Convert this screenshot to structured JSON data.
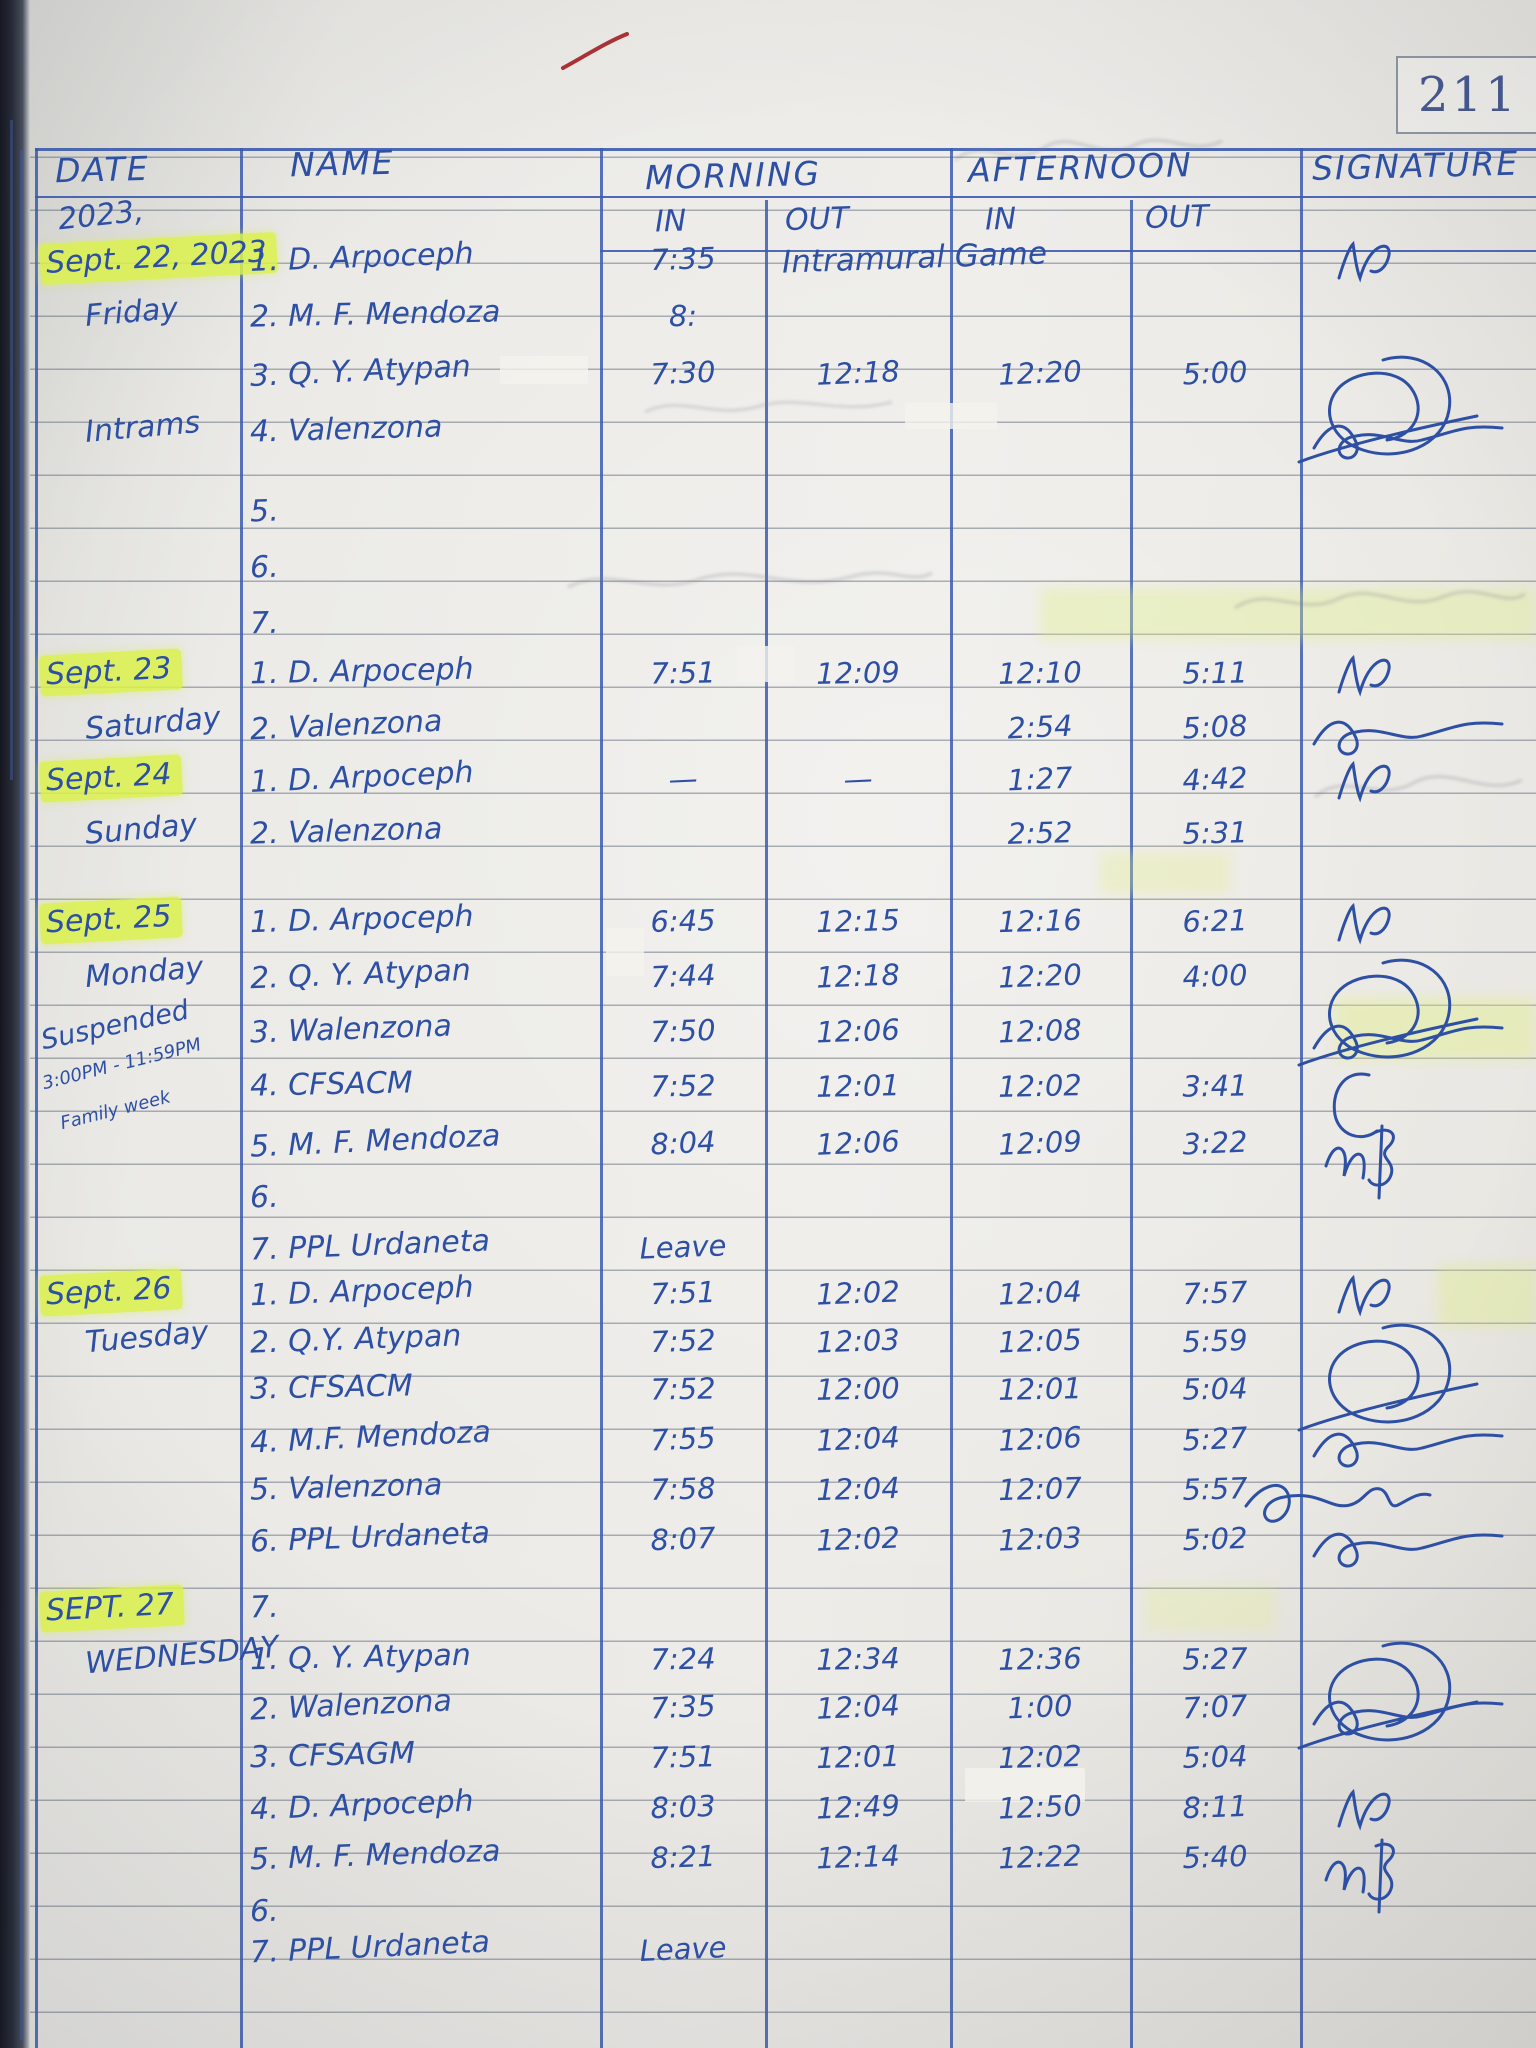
{
  "photo": {
    "page_number": "211"
  },
  "header": {
    "date": "DATE",
    "year": "2023,",
    "name": "NAME",
    "morning": "MORNING",
    "afternoon": "AFTERNOON",
    "signature": "SIGNATURE",
    "morning_in": "IN",
    "morning_out": "OUT",
    "afternoon_in": "IN",
    "afternoon_out": "OUT"
  },
  "colors": {
    "ink_blue": "#2d4fa4",
    "highlighter": "#dbf14a",
    "paper": "#e9e8e4"
  },
  "sections": [
    {
      "date_label": "Sept. 22, 2023",
      "rows": [
        {
          "date": "Sept. 22, 2023",
          "date_style": "date",
          "date_highlight": true,
          "name": "1. D. Arpoceph",
          "m_in": "7:35",
          "span_note": "Intramural Game",
          "sig": "check"
        },
        {
          "date": "Friday",
          "date_style": "day",
          "name": "2. M. F. Mendoza",
          "m_in": "8:"
        },
        {
          "name": "3. Q. Y. Atypan",
          "m_in": "7:30",
          "m_out": "12:18",
          "a_in": "12:20",
          "a_out": "5:00",
          "sig": "bigloop"
        },
        {
          "date": "Intrams",
          "date_style": "day",
          "name": "4. Valenzona",
          "sig": "scrawl"
        },
        {
          "name": "5."
        },
        {
          "name": "6."
        },
        {
          "name": "7."
        }
      ]
    },
    {
      "date_label": "Sept. 23",
      "rows": [
        {
          "date": "Sept. 23",
          "date_style": "date",
          "date_highlight": true,
          "name": "1. D. Arpoceph",
          "m_in": "7:51",
          "m_out": "12:09",
          "a_in": "12:10",
          "a_out": "5:11",
          "sig": "check"
        },
        {
          "date": "Saturday",
          "date_style": "day",
          "name": "2. Valenzona",
          "a_in": "2:54",
          "a_out": "5:08",
          "sig": "scrawl"
        }
      ]
    },
    {
      "date_label": "Sept. 24",
      "rows": [
        {
          "date": "Sept. 24",
          "date_style": "date",
          "date_highlight": true,
          "name": "1. D. Arpoceph",
          "m_in": "—",
          "m_out": "—",
          "a_in": "1:27",
          "a_out": "4:42",
          "sig": "check"
        },
        {
          "date": "Sunday",
          "date_style": "day",
          "name": "2. Valenzona",
          "a_in": "2:52",
          "a_out": "5:31"
        }
      ]
    },
    {
      "date_label": "Sept. 25",
      "rows": [
        {
          "date": "Sept. 25",
          "date_style": "date",
          "date_highlight": true,
          "name": "1. D. Arpoceph",
          "m_in": "6:45",
          "m_out": "12:15",
          "a_in": "12:16",
          "a_out": "6:21",
          "sig": "check"
        },
        {
          "date": "Monday",
          "date_style": "day",
          "name": "2. Q. Y. Atypan",
          "m_in": "7:44",
          "m_out": "12:18",
          "a_in": "12:20",
          "a_out": "4:00",
          "sig": "bigloop"
        },
        {
          "date": "Suspended",
          "date_style": "note",
          "name": "3. Walenzona",
          "m_in": "7:50",
          "m_out": "12:06",
          "a_in": "12:08",
          "sig": "scrawl"
        },
        {
          "date": "3:00PM - 11:59PM",
          "date_sub": "Family week",
          "date_style": "smallnote",
          "name": "4. CFSACM",
          "m_in": "7:52",
          "m_out": "12:01",
          "a_in": "12:02",
          "a_out": "3:41",
          "sig": "curve"
        },
        {
          "name": "5. M. F. Mendoza",
          "m_in": "8:04",
          "m_out": "12:06",
          "a_in": "12:09",
          "a_out": "3:22",
          "sig": "ms"
        },
        {
          "name": "6."
        },
        {
          "name": "7. PPL Urdaneta",
          "m_in": "Leave"
        }
      ]
    },
    {
      "date_label": "Sept. 26",
      "rows": [
        {
          "date": "Sept. 26",
          "date_style": "date",
          "date_highlight": true,
          "name": "1. D. Arpoceph",
          "m_in": "7:51",
          "m_out": "12:02",
          "a_in": "12:04",
          "a_out": "7:57",
          "sig": "check"
        },
        {
          "date": "Tuesday",
          "date_style": "day",
          "name": "2. Q.Y. Atypan",
          "m_in": "7:52",
          "m_out": "12:03",
          "a_in": "12:05",
          "a_out": "5:59",
          "sig": "bigloop"
        },
        {
          "name": "3. CFSACM",
          "m_in": "7:52",
          "m_out": "12:00",
          "a_in": "12:01",
          "a_out": "5:04"
        },
        {
          "name": "4. M.F. Mendoza",
          "m_in": "7:55",
          "m_out": "12:04",
          "a_in": "12:06",
          "a_out": "5:27",
          "sig": "scrawl"
        },
        {
          "name": "5. Valenzona",
          "m_in": "7:58",
          "m_out": "12:04",
          "a_in": "12:07",
          "a_out": "5:57",
          "sig": "villy"
        },
        {
          "name": "6. PPL Urdaneta",
          "m_in": "8:07",
          "m_out": "12:02",
          "a_in": "12:03",
          "a_out": "5:02",
          "sig": "scrawl"
        }
      ]
    },
    {
      "date_label": "Sept. 27",
      "rows": [
        {
          "date": "SEPT. 27",
          "date_style": "date",
          "date_highlight": true,
          "name": "7."
        },
        {
          "date": "WEDNESDAY",
          "date_style": "day",
          "name": "1. Q. Y. Atypan",
          "m_in": "7:24",
          "m_out": "12:34",
          "a_in": "12:36",
          "a_out": "5:27",
          "sig": "bigloop"
        },
        {
          "name": "2. Walenzona",
          "m_in": "7:35",
          "m_out": "12:04",
          "a_in": "1:00",
          "a_out": "7:07",
          "sig": "scrawl"
        },
        {
          "name": "3. CFSAGM",
          "m_in": "7:51",
          "m_out": "12:01",
          "a_in": "12:02",
          "a_out": "5:04"
        },
        {
          "name": "4. D. Arpoceph",
          "m_in": "8:03",
          "m_out": "12:49",
          "a_in": "12:50",
          "a_out": "8:11",
          "sig": "check"
        },
        {
          "name": "5. M. F. Mendoza",
          "m_in": "8:21",
          "m_out": "12:14",
          "a_in": "12:22",
          "a_out": "5:40",
          "sig": "ms"
        },
        {
          "name": "6."
        },
        {
          "name": "7. PPL Urdaneta",
          "m_in": "Leave"
        }
      ]
    }
  ]
}
